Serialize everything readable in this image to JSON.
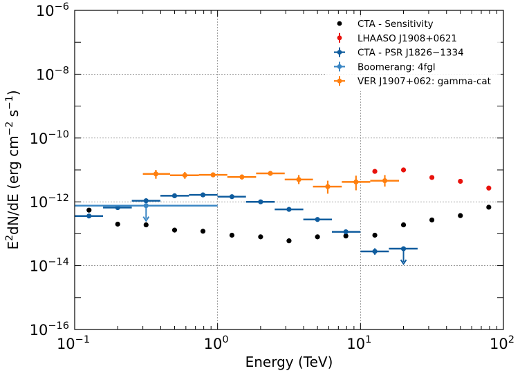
{
  "chart_data": {
    "type": "scatter",
    "title": "",
    "xlabel": "Energy (TeV)",
    "ylabel": "E^2dN/dE (erg cm^-2 s^-1)",
    "xscale": "log",
    "yscale": "log",
    "xlim": [
      0.1,
      100
    ],
    "ylim": [
      1e-16,
      1e-06
    ],
    "x_ticks": [
      0.1,
      1,
      10,
      100
    ],
    "x_tick_labels": [
      {
        "base": "10",
        "exp": "−1"
      },
      {
        "base": "10",
        "exp": "0"
      },
      {
        "base": "10",
        "exp": "1"
      },
      {
        "base": "10",
        "exp": "2"
      }
    ],
    "y_ticks": [
      1e-16,
      1e-14,
      1e-12,
      1e-10,
      1e-08,
      1e-06
    ],
    "y_tick_labels": [
      {
        "base": "10",
        "exp": "−16"
      },
      {
        "base": "10",
        "exp": "−14"
      },
      {
        "base": "10",
        "exp": "−12"
      },
      {
        "base": "10",
        "exp": "−10"
      },
      {
        "base": "10",
        "exp": "−8"
      },
      {
        "base": "10",
        "exp": "−6"
      }
    ],
    "grid": true,
    "legend_position": "top-right",
    "series": [
      {
        "name": "CTA - Sensitivity",
        "color": "#000000",
        "marker": "dot",
        "points": [
          {
            "x": 0.126,
            "y": 5.5e-13
          },
          {
            "x": 0.2,
            "y": 2e-13
          },
          {
            "x": 0.316,
            "y": 1.9e-13
          },
          {
            "x": 0.5,
            "y": 1.3e-13
          },
          {
            "x": 0.79,
            "y": 1.2e-13
          },
          {
            "x": 1.26,
            "y": 9e-14
          },
          {
            "x": 2.0,
            "y": 8e-14
          },
          {
            "x": 3.16,
            "y": 6e-14
          },
          {
            "x": 5.0,
            "y": 8e-14
          },
          {
            "x": 7.9,
            "y": 8.5e-14
          },
          {
            "x": 12.6,
            "y": 9e-14
          },
          {
            "x": 20.0,
            "y": 1.9e-13
          },
          {
            "x": 31.6,
            "y": 2.7e-13
          },
          {
            "x": 50.0,
            "y": 3.7e-13
          },
          {
            "x": 79.0,
            "y": 6.8e-13
          }
        ]
      },
      {
        "name": "LHAASO J1908+0621",
        "color": "#e8120c",
        "marker": "dot-errorbar",
        "points": [
          {
            "x": 12.6,
            "y": 9e-12
          },
          {
            "x": 20.0,
            "y": 1e-11
          },
          {
            "x": 31.6,
            "y": 5.8e-12
          },
          {
            "x": 50.0,
            "y": 4.4e-12
          },
          {
            "x": 79.0,
            "y": 2.7e-12
          }
        ]
      },
      {
        "name": "CTA - PSR J1826−1334",
        "color": "#0f5c9e",
        "marker": "dot-errorbar",
        "points": [
          {
            "x": 0.126,
            "xlo": 0.1,
            "xhi": 0.158,
            "y": 3.6e-13
          },
          {
            "x": 0.2,
            "xlo": 0.158,
            "xhi": 0.251,
            "y": 6.6e-13
          },
          {
            "x": 0.316,
            "xlo": 0.251,
            "xhi": 0.398,
            "y": 1.08e-12
          },
          {
            "x": 0.5,
            "xlo": 0.398,
            "xhi": 0.631,
            "y": 1.55e-12
          },
          {
            "x": 0.79,
            "xlo": 0.631,
            "xhi": 1.0,
            "y": 1.65e-12
          },
          {
            "x": 1.26,
            "xlo": 1.0,
            "xhi": 1.58,
            "y": 1.45e-12
          },
          {
            "x": 2.0,
            "xlo": 1.58,
            "xhi": 2.51,
            "y": 1e-12
          },
          {
            "x": 3.16,
            "xlo": 2.51,
            "xhi": 3.98,
            "y": 5.8e-13
          },
          {
            "x": 5.0,
            "xlo": 3.98,
            "xhi": 6.31,
            "y": 2.8e-13
          },
          {
            "x": 7.9,
            "xlo": 6.31,
            "xhi": 10.0,
            "y": 1.15e-13
          },
          {
            "x": 12.6,
            "xlo": 10.0,
            "xhi": 15.8,
            "y": 2.8e-14,
            "ylo": 2.2e-14,
            "yhi": 3.5e-14
          },
          {
            "x": 20.0,
            "xlo": 15.8,
            "xhi": 25.1,
            "y": 3.4e-14,
            "upper_limit": true
          }
        ]
      },
      {
        "name": "Boomerang: 4fgl",
        "color": "#3a86c4",
        "marker": "dot-errorbar",
        "points": [
          {
            "x": 0.316,
            "xlo": 0.1,
            "xhi": 1.0,
            "y": 7.6e-13,
            "upper_limit": true
          }
        ]
      },
      {
        "name": "VER J1907+062: gamma-cat",
        "color": "#ff7f0e",
        "marker": "dot-errorbar",
        "points": [
          {
            "x": 0.37,
            "xlo": 0.3,
            "xhi": 0.465,
            "y": 7.5e-12,
            "ylo": 5.3e-12,
            "yhi": 1e-11
          },
          {
            "x": 0.59,
            "xlo": 0.465,
            "xhi": 0.74,
            "y": 6.8e-12,
            "ylo": 5.3e-12,
            "yhi": 8.6e-12
          },
          {
            "x": 0.93,
            "xlo": 0.74,
            "xhi": 1.17,
            "y": 7e-12,
            "ylo": 5.9e-12,
            "yhi": 8.4e-12
          },
          {
            "x": 1.48,
            "xlo": 1.17,
            "xhi": 1.86,
            "y": 6e-12,
            "ylo": 5e-12,
            "yhi": 7.2e-12
          },
          {
            "x": 2.34,
            "xlo": 1.86,
            "xhi": 2.95,
            "y": 7.8e-12,
            "ylo": 6.6e-12,
            "yhi": 9e-12
          },
          {
            "x": 3.7,
            "xlo": 2.95,
            "xhi": 4.65,
            "y": 5e-12,
            "ylo": 3.6e-12,
            "yhi": 6.9e-12
          },
          {
            "x": 5.9,
            "xlo": 4.65,
            "xhi": 7.4,
            "y": 3e-12,
            "ylo": 1.8e-12,
            "yhi": 4.6e-12
          },
          {
            "x": 9.3,
            "xlo": 7.4,
            "xhi": 11.7,
            "y": 4.2e-12,
            "ylo": 2.3e-12,
            "yhi": 6.6e-12
          },
          {
            "x": 14.8,
            "xlo": 11.7,
            "xhi": 18.6,
            "y": 4.6e-12,
            "ylo": 3e-12,
            "yhi": 6.9e-12
          }
        ]
      }
    ]
  }
}
